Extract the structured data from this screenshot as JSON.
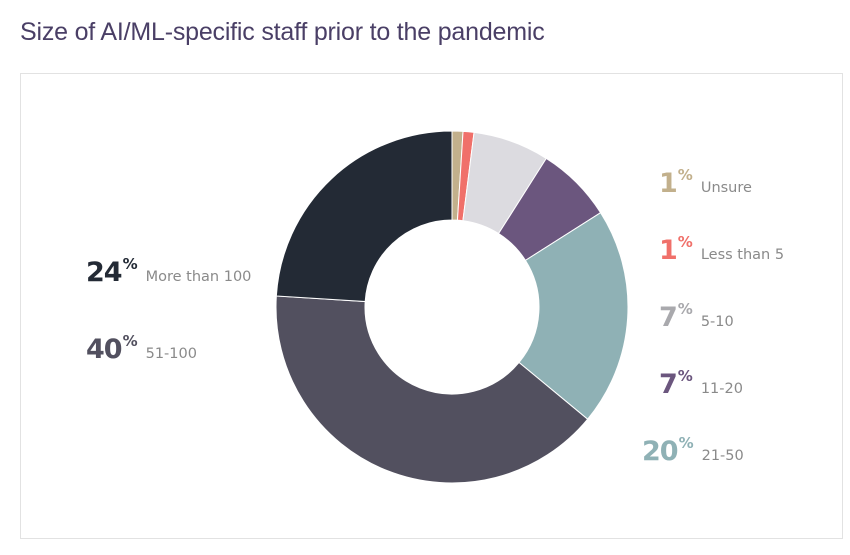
{
  "title": "Size of AI/ML-specific staff prior to the pandemic",
  "chart_data": {
    "type": "pie",
    "donut": true,
    "title": "Size of AI/ML-specific staff prior to the pandemic",
    "percent_symbol": "%",
    "slices": [
      {
        "label": "Unsure",
        "value": 1,
        "display": "1",
        "color": "#c2b08c"
      },
      {
        "label": "Less than 5",
        "value": 1,
        "display": "1",
        "color": "#f0706a"
      },
      {
        "label": "5-10",
        "value": 7,
        "display": "7",
        "color": "#dcdbe0"
      },
      {
        "label": "11-20",
        "value": 7,
        "display": "7",
        "color": "#6b567e"
      },
      {
        "label": "21-50",
        "value": 20,
        "display": "20",
        "color": "#8fb1b5"
      },
      {
        "label": "51-100",
        "value": 40,
        "display": "40",
        "color": "#52505f"
      },
      {
        "label": "More than 100",
        "value": 24,
        "display": "24",
        "color": "#232a35"
      }
    ],
    "percent_colors": {
      "Unsure": "#c2b08c",
      "Less than 5": "#f0706a",
      "5-10": "#a9a9ad",
      "11-20": "#6b567e",
      "21-50": "#8fb1b5",
      "51-100": "#52505f",
      "More than 100": "#232a35"
    }
  }
}
